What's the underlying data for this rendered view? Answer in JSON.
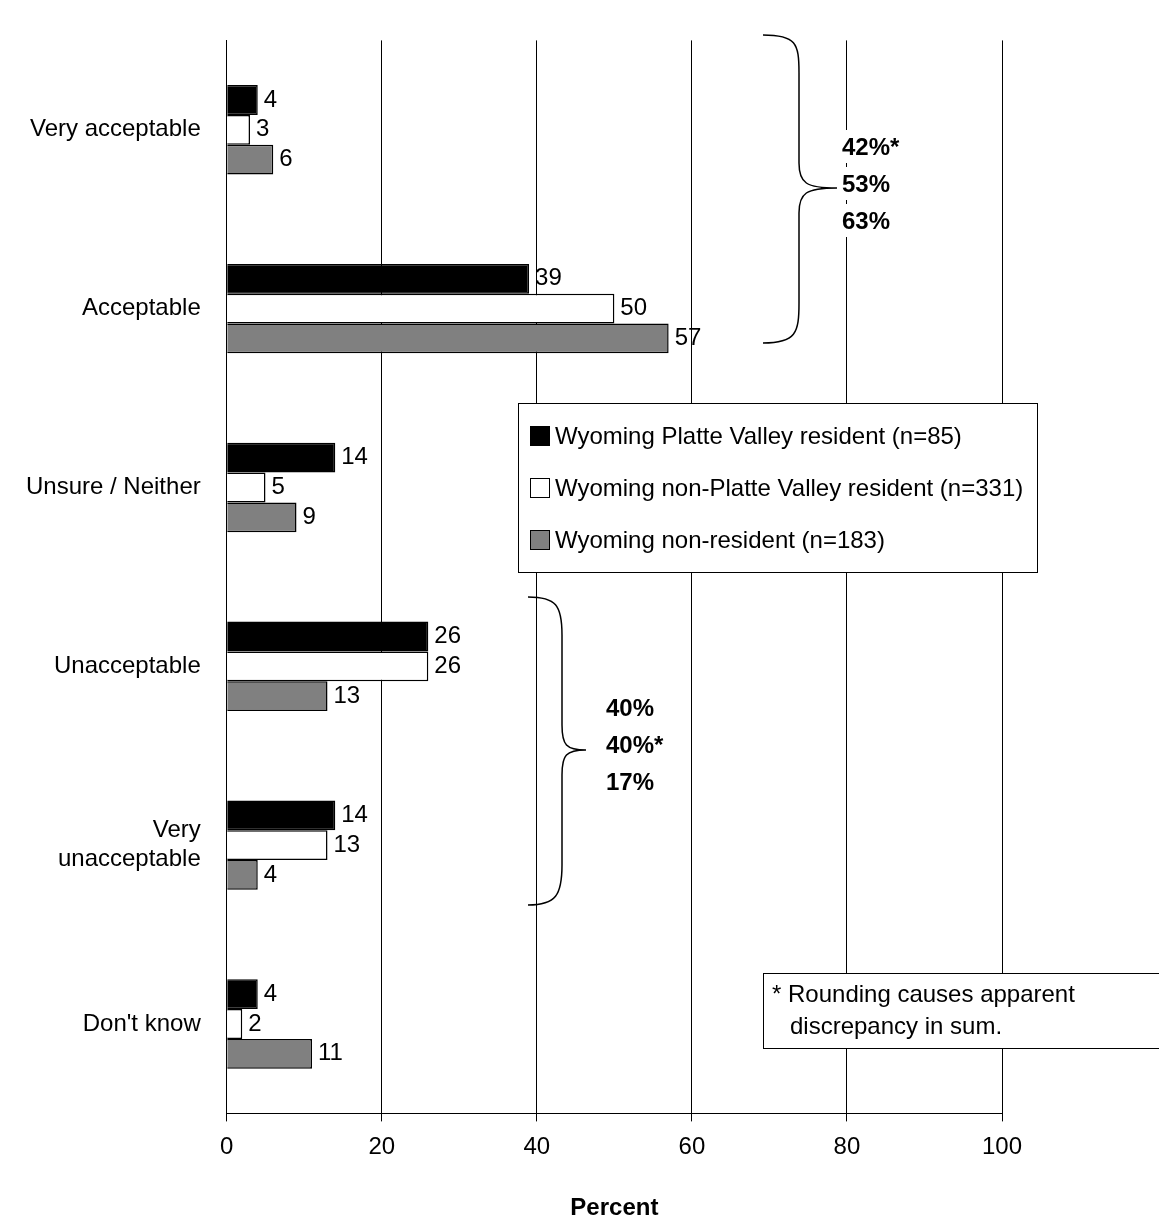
{
  "chart_data": {
    "type": "bar",
    "orientation": "horizontal",
    "xlabel": "Percent",
    "categories": [
      "Very acceptable",
      "Acceptable",
      "Unsure / Neither",
      "Unacceptable",
      "Very unacceptable",
      "Don't know"
    ],
    "series": [
      {
        "name": "Wyoming Platte Valley resident (n=85)",
        "color": "#000000",
        "values": [
          4,
          39,
          14,
          26,
          14,
          4
        ]
      },
      {
        "name": "Wyoming non-Platte Valley resident (n=331)",
        "color": "#ffffff",
        "values": [
          3,
          50,
          5,
          26,
          13,
          2
        ]
      },
      {
        "name": "Wyoming non-resident (n=183)",
        "color": "#808080",
        "values": [
          6,
          57,
          9,
          13,
          4,
          11
        ]
      }
    ],
    "xlim": [
      0,
      100
    ],
    "xticks": [
      0,
      20,
      40,
      60,
      80,
      100
    ],
    "grid": "x",
    "legend": "right",
    "data_labels": true,
    "annotations": [
      "42%*",
      "53%",
      "63%",
      "40%",
      "40%*",
      "17%",
      "* Rounding causes apparent discrepancy in sum."
    ]
  }
}
